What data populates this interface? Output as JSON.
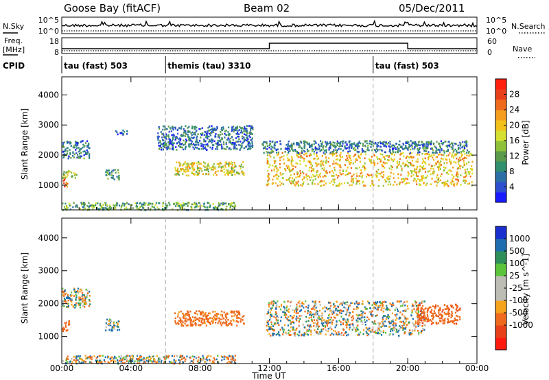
{
  "header": {
    "station": "Goose Bay (fitACF)",
    "beam": "Beam 02",
    "date": "05/Dec/2011"
  },
  "noise_panel": {
    "left_label": "N.Sky",
    "right_label": "N.Search",
    "left_ticks": [
      "10^5",
      "10^0"
    ],
    "right_ticks": [
      "10^5",
      "10^0"
    ]
  },
  "freq_panel": {
    "left_label_1": "Freq.",
    "left_label_2": "[MHz]",
    "right_label": "Nave",
    "left_ticks": [
      "18",
      "8"
    ],
    "right_ticks": [
      "60",
      "0"
    ]
  },
  "cpid_panel": {
    "label": "CPID",
    "segments": [
      {
        "start_hour": 0,
        "text": "tau (fast) 503"
      },
      {
        "start_hour": 6,
        "text": "themis (tau) 3310"
      },
      {
        "start_hour": 18,
        "text": "tau (fast) 503"
      }
    ]
  },
  "x_axis": {
    "label": "Time UT",
    "range_hours": [
      0,
      24
    ],
    "tick_hours": [
      0,
      4,
      8,
      12,
      16,
      20,
      24
    ],
    "tick_labels": [
      "00:00",
      "04:00",
      "08:00",
      "12:00",
      "16:00",
      "20:00",
      "00:00"
    ]
  },
  "chart_data": [
    {
      "type": "heatmap",
      "name": "power",
      "ylabel": "Slant Range [km]",
      "ylim": [
        180,
        4600
      ],
      "y_ticks": [
        1000,
        2000,
        3000,
        4000
      ],
      "y_tick_labels": [
        "1000",
        "2000",
        "3000",
        "4000"
      ],
      "colorbar": {
        "label": "Power [dB]",
        "range": [
          0,
          32
        ],
        "ticks": [
          4,
          8,
          12,
          16,
          20,
          24,
          28
        ],
        "tick_labels": [
          "4",
          "8",
          "12",
          "16",
          "20",
          "24",
          "28"
        ],
        "colors": [
          "#1a1aff",
          "#2e4fd0",
          "#2b6fa6",
          "#2f8f6f",
          "#5a9a4a",
          "#8fc23a",
          "#d6e030",
          "#f2c21a",
          "#f59d1c",
          "#ef6a1c",
          "#e8411a",
          "#ff2010"
        ]
      },
      "echo_regions": [
        {
          "t": [
            0.0,
            0.3
          ],
          "r": [
            950,
            1300
          ],
          "v": 26
        },
        {
          "t": [
            0.0,
            1.6
          ],
          "r": [
            1900,
            2500
          ],
          "v": 8
        },
        {
          "t": [
            0.0,
            0.9
          ],
          "r": [
            1250,
            1500
          ],
          "v": 15
        },
        {
          "t": [
            2.5,
            3.3
          ],
          "r": [
            1200,
            1550
          ],
          "v": 10
        },
        {
          "t": [
            3.0,
            3.8
          ],
          "r": [
            2700,
            2850
          ],
          "v": 6
        },
        {
          "t": [
            6.5,
            10.5
          ],
          "r": [
            1350,
            1800
          ],
          "v": 18
        },
        {
          "t": [
            5.5,
            11.0
          ],
          "r": [
            2200,
            3000
          ],
          "v": 7
        },
        {
          "t": [
            11.8,
            23.7
          ],
          "r": [
            1000,
            2100
          ],
          "v": 20
        },
        {
          "t": [
            11.5,
            23.5
          ],
          "r": [
            2100,
            2500
          ],
          "v": 8
        },
        {
          "t": [
            0.0,
            10.0
          ],
          "r": [
            200,
            450
          ],
          "v": 12
        }
      ]
    },
    {
      "type": "heatmap",
      "name": "velocity",
      "ylabel": "Slant Range [km]",
      "ylim": [
        180,
        4600
      ],
      "y_ticks": [
        1000,
        2000,
        3000,
        4000
      ],
      "y_tick_labels": [
        "1000",
        "2000",
        "3000",
        "4000"
      ],
      "colorbar": {
        "label": "Velocity [m s^-1]",
        "ticks": [
          1000,
          500,
          100,
          25,
          -25,
          -100,
          -500,
          -1000
        ],
        "tick_labels": [
          "1000",
          "500",
          "100",
          "25",
          "-25",
          "-100",
          "-500",
          "-1000"
        ],
        "colors": [
          "#1a2fd0",
          "#1f6fb0",
          "#2e8f5a",
          "#5cc43a",
          "#bdbdb5",
          "#bdbdb5",
          "#f5a21c",
          "#ef6a1c",
          "#e8411a",
          "#ff1a10"
        ]
      },
      "echo_regions": [
        {
          "t": [
            0.0,
            0.4
          ],
          "r": [
            1150,
            1500
          ],
          "v": -400
        },
        {
          "t": [
            0.0,
            1.6
          ],
          "r": [
            1900,
            2500
          ],
          "v": 0
        },
        {
          "t": [
            2.5,
            3.3
          ],
          "r": [
            1200,
            1550
          ],
          "v": 150
        },
        {
          "t": [
            6.5,
            10.5
          ],
          "r": [
            1350,
            1800
          ],
          "v": -250
        },
        {
          "t": [
            11.8,
            21.0
          ],
          "r": [
            1050,
            2100
          ],
          "v": 0
        },
        {
          "t": [
            20.5,
            23.0
          ],
          "r": [
            1400,
            2000
          ],
          "v": -350
        },
        {
          "t": [
            0.0,
            10.0
          ],
          "r": [
            200,
            450
          ],
          "v": 0
        }
      ]
    }
  ]
}
